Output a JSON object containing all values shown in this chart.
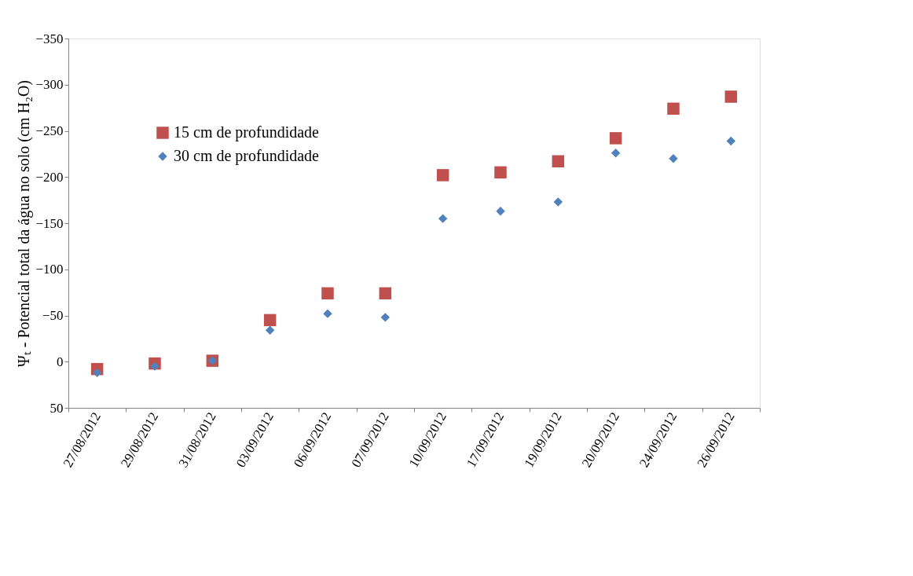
{
  "chart_data": {
    "type": "scatter",
    "ylabel": "Ψₜ - Potencial total da água no solo (cm H₂O)",
    "categories": [
      "27/08/2012",
      "29/08/2012",
      "31/08/2012",
      "03/09/2012",
      "06/09/2012",
      "07/09/2012",
      "10/09/2012",
      "17/09/2012",
      "19/09/2012",
      "20/09/2012",
      "24/09/2012",
      "26/09/2012"
    ],
    "series": [
      {
        "name": "15 cm de profundidade",
        "color": "#c0504d",
        "marker": "square",
        "values": [
          8,
          2,
          -1,
          -45,
          -74,
          -74,
          -202,
          -205,
          -217,
          -242,
          -274,
          -287
        ]
      },
      {
        "name": "30 cm de profundidade",
        "color": "#4f81bd",
        "marker": "diamond",
        "values": [
          12,
          5,
          -1,
          -34,
          -52,
          -48,
          -155,
          -163,
          -173,
          -226,
          -220,
          -239
        ]
      }
    ],
    "ylim": [
      50,
      -350
    ],
    "yticks": [
      50,
      0,
      -50,
      -100,
      -150,
      -200,
      -250,
      -300,
      -350
    ],
    "grid": false,
    "legend": "top left"
  }
}
